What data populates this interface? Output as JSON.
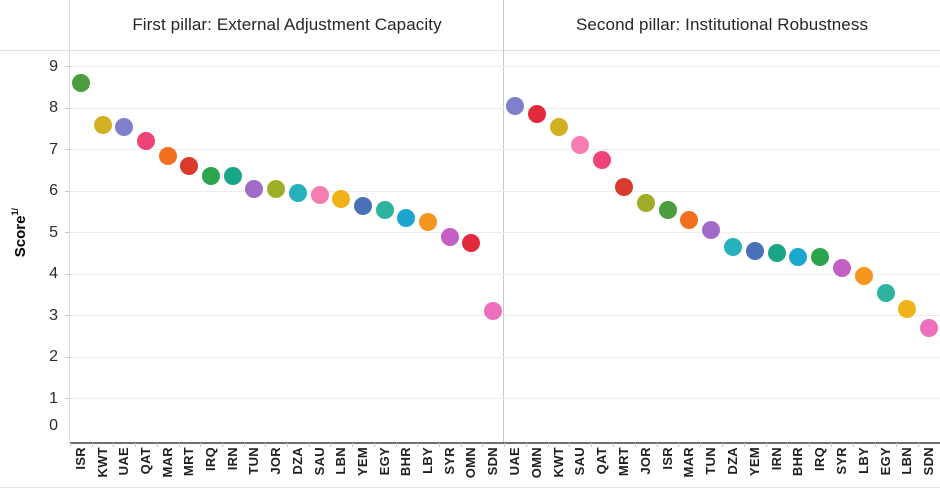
{
  "chart_data": {
    "type": "scatter",
    "title": "",
    "ylabel": "Score",
    "ylabel_footnote_mark": "1/",
    "xlabel": "",
    "ylim": [
      0,
      9
    ],
    "yticks": [
      0,
      1,
      2,
      3,
      4,
      5,
      6,
      7,
      8,
      9
    ],
    "grid": true,
    "legend": "none",
    "panels": [
      {
        "title": "First pillar: External Adjustment Capacity",
        "categories": [
          "ISR",
          "KWT",
          "UAE",
          "QAT",
          "MAR",
          "MRT",
          "IRQ",
          "IRN",
          "TUN",
          "JOR",
          "DZA",
          "SAU",
          "LBN",
          "YEM",
          "EGY",
          "BHR",
          "LBY",
          "SYR",
          "OMN",
          "SDN"
        ],
        "values": [
          8.6,
          7.6,
          7.55,
          7.2,
          6.85,
          6.6,
          6.35,
          6.35,
          6.05,
          6.05,
          5.95,
          5.9,
          5.8,
          5.65,
          5.55,
          5.35,
          5.25,
          4.9,
          4.75,
          3.1
        ]
      },
      {
        "title": "Second pillar: Institutional Robustness",
        "categories": [
          "UAE",
          "OMN",
          "KWT",
          "SAU",
          "QAT",
          "MRT",
          "JOR",
          "ISR",
          "MAR",
          "TUN",
          "DZA",
          "YEM",
          "IRN",
          "BHR",
          "IRQ",
          "SYR",
          "LBY",
          "EGY",
          "LBN",
          "SDN"
        ],
        "values": [
          8.05,
          7.85,
          7.55,
          7.1,
          6.75,
          6.1,
          5.7,
          5.55,
          5.3,
          5.05,
          4.65,
          4.55,
          4.5,
          4.4,
          4.4,
          4.15,
          3.95,
          3.55,
          3.15,
          2.7
        ]
      }
    ],
    "country_colors": {
      "ISR": "#4a9e3d",
      "KWT": "#d3b022",
      "UAE": "#7f80cc",
      "QAT": "#ef4377",
      "MAR": "#f0701f",
      "MRT": "#d93a2b",
      "IRQ": "#2ca44e",
      "IRN": "#1aa589",
      "TUN": "#a36bc9",
      "JOR": "#a0ad27",
      "DZA": "#27b1bd",
      "SAU": "#f77eb2",
      "LBN": "#f0b317",
      "YEM": "#4a70b8",
      "EGY": "#2db39e",
      "BHR": "#1aa6cf",
      "LBY": "#f5961e",
      "SYR": "#c45fc6",
      "OMN": "#e22a3d",
      "SDN": "#ed6fbc"
    }
  }
}
